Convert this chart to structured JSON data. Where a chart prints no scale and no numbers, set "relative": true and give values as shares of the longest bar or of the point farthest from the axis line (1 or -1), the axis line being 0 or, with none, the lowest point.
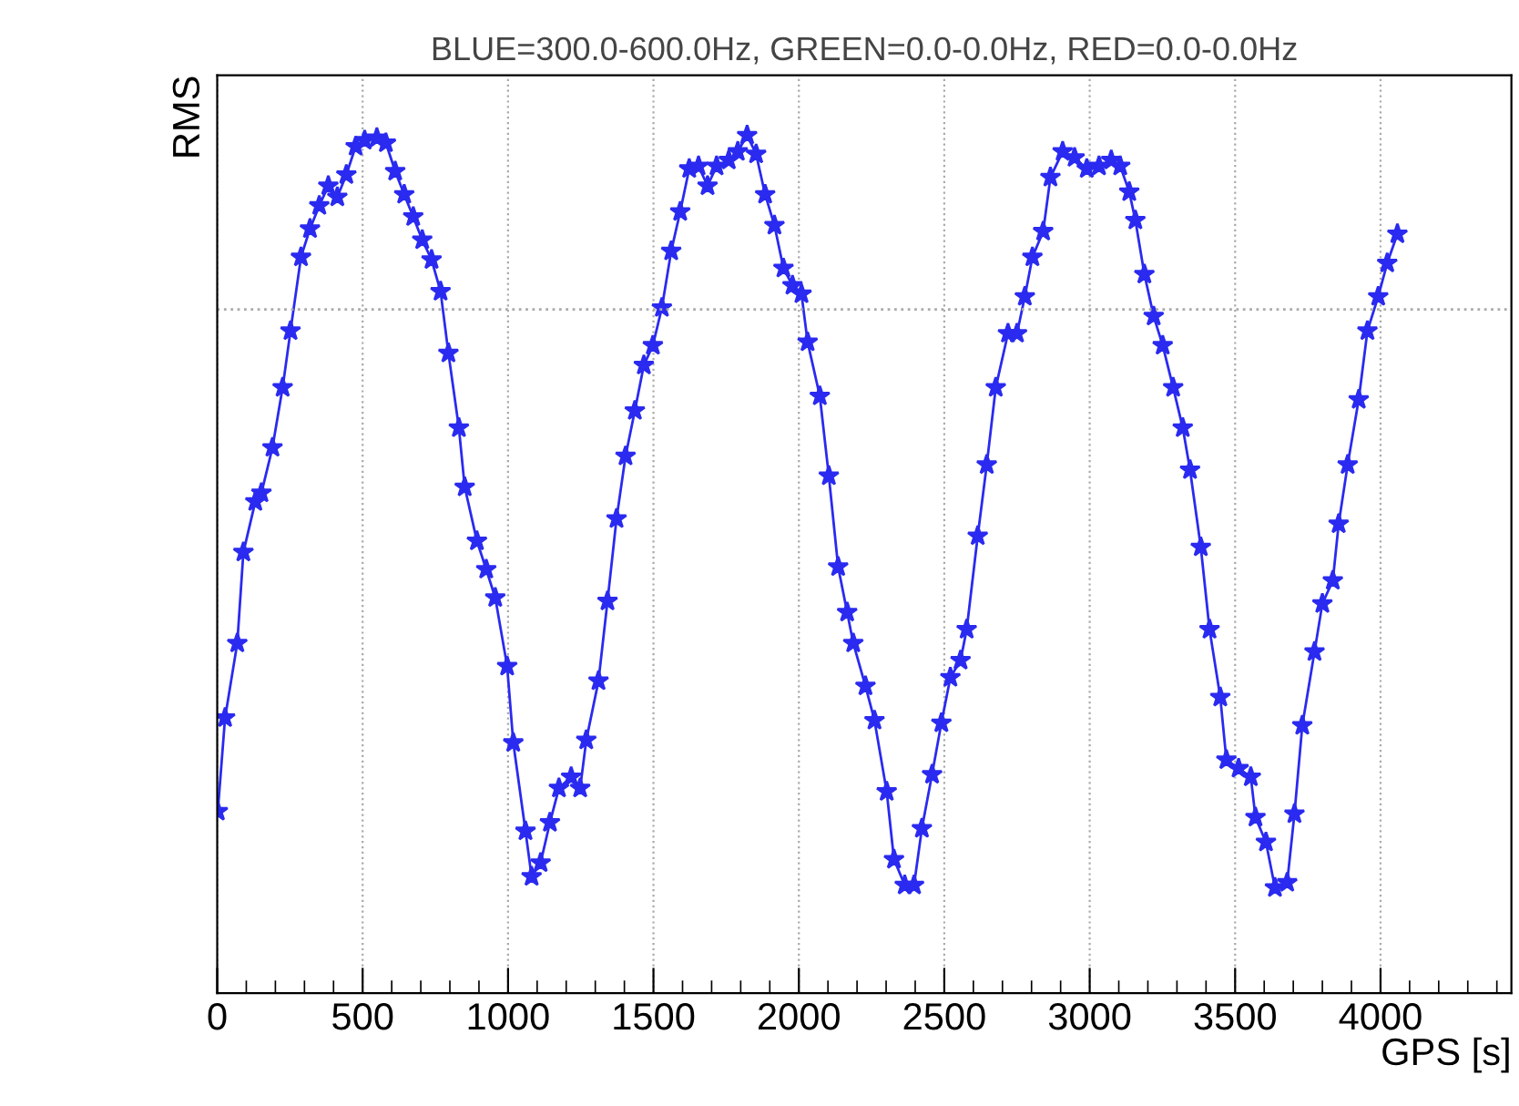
{
  "chart_data": {
    "type": "line",
    "title": "BLUE=300.0-600.0Hz, GREEN=0.0-0.0Hz, RED=0.0-0.0Hz",
    "xlabel": "GPS [s]",
    "ylabel": "RMS",
    "relative": true,
    "xlim": [
      0,
      4450
    ],
    "xticks": [
      0,
      500,
      1000,
      1500,
      2000,
      2500,
      3000,
      3500,
      4000
    ],
    "grid": "x",
    "marker": "star",
    "line_style": "solid",
    "ref_lines": [
      {
        "axis": "y",
        "value": 0.797,
        "color": "#aaaaaa",
        "line_style": "dotted"
      }
    ],
    "series": [
      {
        "color": "#2a2af0",
        "x": [
          2,
          27,
          69,
          90,
          131,
          152,
          190,
          225,
          252,
          288,
          319,
          351,
          382,
          413,
          444,
          476,
          507,
          549,
          580,
          612,
          643,
          674,
          705,
          737,
          768,
          795,
          831,
          851,
          893,
          925,
          956,
          997,
          1018,
          1060,
          1081,
          1112,
          1144,
          1175,
          1217,
          1248,
          1269,
          1311,
          1342,
          1373,
          1404,
          1436,
          1467,
          1498,
          1529,
          1561,
          1592,
          1623,
          1655,
          1686,
          1717,
          1759,
          1790,
          1822,
          1853,
          1884,
          1916,
          1947,
          1978,
          2009,
          2030,
          2072,
          2103,
          2135,
          2166,
          2187,
          2229,
          2260,
          2302,
          2327,
          2364,
          2396,
          2423,
          2458,
          2490,
          2521,
          2556,
          2577,
          2615,
          2646,
          2677,
          2719,
          2750,
          2777,
          2803,
          2840,
          2865,
          2907,
          2948,
          2990,
          3032,
          3074,
          3105,
          3136,
          3157,
          3188,
          3220,
          3251,
          3287,
          3320,
          3345,
          3382,
          3412,
          3449,
          3470,
          3512,
          3554,
          3570,
          3606,
          3637,
          3679,
          3704,
          3731,
          3773,
          3800,
          3836,
          3856,
          3887,
          3925,
          3955,
          3992,
          4023,
          4058
        ],
        "values": [
          0.212,
          0.321,
          0.408,
          0.514,
          0.573,
          0.583,
          0.636,
          0.706,
          0.772,
          0.858,
          0.891,
          0.918,
          0.941,
          0.928,
          0.954,
          0.987,
          0.994,
          0.997,
          0.991,
          0.958,
          0.931,
          0.905,
          0.878,
          0.855,
          0.818,
          0.746,
          0.659,
          0.59,
          0.527,
          0.494,
          0.461,
          0.381,
          0.292,
          0.189,
          0.136,
          0.152,
          0.199,
          0.239,
          0.252,
          0.239,
          0.295,
          0.364,
          0.457,
          0.553,
          0.626,
          0.679,
          0.732,
          0.755,
          0.799,
          0.865,
          0.911,
          0.961,
          0.964,
          0.941,
          0.964,
          0.971,
          0.981,
          1.0,
          0.978,
          0.931,
          0.895,
          0.845,
          0.825,
          0.815,
          0.759,
          0.696,
          0.603,
          0.497,
          0.444,
          0.408,
          0.358,
          0.318,
          0.235,
          0.156,
          0.126,
          0.126,
          0.192,
          0.255,
          0.315,
          0.368,
          0.388,
          0.424,
          0.533,
          0.616,
          0.706,
          0.769,
          0.769,
          0.812,
          0.858,
          0.888,
          0.951,
          0.981,
          0.974,
          0.961,
          0.964,
          0.971,
          0.964,
          0.934,
          0.901,
          0.838,
          0.789,
          0.755,
          0.706,
          0.659,
          0.61,
          0.52,
          0.424,
          0.345,
          0.272,
          0.262,
          0.252,
          0.205,
          0.176,
          0.123,
          0.129,
          0.209,
          0.312,
          0.398,
          0.454,
          0.481,
          0.547,
          0.616,
          0.692,
          0.772,
          0.812,
          0.851,
          0.885
        ]
      }
    ]
  }
}
